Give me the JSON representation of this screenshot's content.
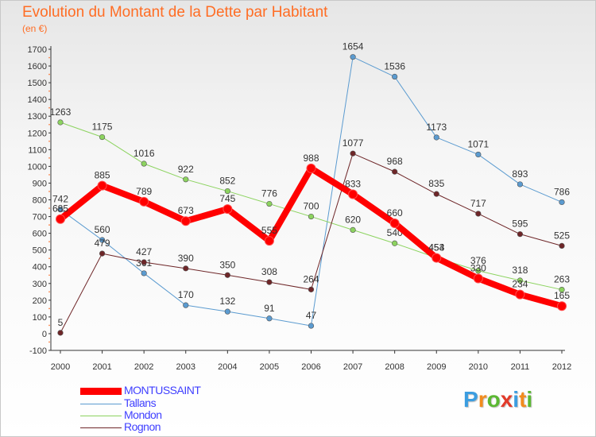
{
  "header": {
    "title": "Evolution du Montant de la Dette par Habitant",
    "subtitle": "(en €)"
  },
  "brand": {
    "text": "Proxiti",
    "letters": [
      {
        "ch": "P",
        "color": "#3b9de0"
      },
      {
        "ch": "r",
        "color": "#f28c1e"
      },
      {
        "ch": "o",
        "color": "#5bb832"
      },
      {
        "ch": "x",
        "color": "#e23a2a"
      },
      {
        "ch": "i",
        "color": "#3b9de0"
      },
      {
        "ch": "t",
        "color": "#f28c1e"
      },
      {
        "ch": "i",
        "color": "#5bb832"
      }
    ]
  },
  "chart_data": {
    "type": "line",
    "title": "Evolution du Montant de la Dette par Habitant",
    "subtitle": "(en €)",
    "xlabel": "",
    "ylabel": "",
    "x": [
      "2000",
      "2001",
      "2002",
      "2003",
      "2004",
      "2005",
      "2006",
      "2007",
      "2008",
      "2009",
      "2010",
      "2011",
      "2012"
    ],
    "ylim": [
      -100,
      1700
    ],
    "yticks": [
      -100,
      0,
      100,
      200,
      300,
      400,
      500,
      600,
      700,
      800,
      900,
      1000,
      1100,
      1200,
      1300,
      1400,
      1500,
      1600,
      1700
    ],
    "grid": false,
    "legend": "bottom-left",
    "series": [
      {
        "name": "Tallans",
        "color": "#5b9bd0",
        "values": [
          742,
          560,
          361,
          170,
          132,
          91,
          47,
          1654,
          1536,
          1173,
          1071,
          893,
          786
        ]
      },
      {
        "name": "Mondon",
        "color": "#8cd35f",
        "values": [
          1263,
          1175,
          1016,
          922,
          852,
          776,
          700,
          620,
          540,
          454,
          376,
          318,
          263
        ]
      },
      {
        "name": "Rognon",
        "color": "#6e2628",
        "values": [
          5,
          479,
          427,
          390,
          350,
          308,
          264,
          1077,
          968,
          835,
          717,
          595,
          525
        ]
      },
      {
        "name": "MONTUSSAINT",
        "color": "#ff0000",
        "values": [
          685,
          885,
          789,
          673,
          745,
          555,
          988,
          833,
          660,
          453,
          330,
          234,
          165
        ]
      }
    ],
    "legend_order": [
      "MONTUSSAINT",
      "Tallans",
      "Mondon",
      "Rognon"
    ]
  }
}
